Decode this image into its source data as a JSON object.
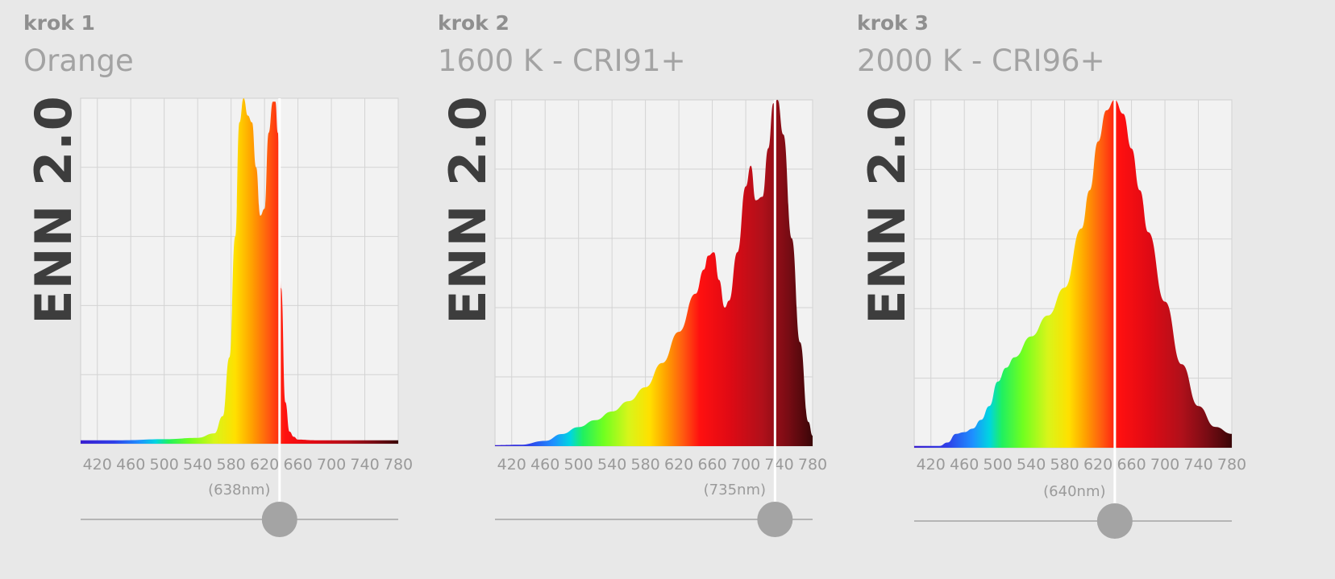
{
  "panels": [
    {
      "step": "krok 1",
      "heading": "Orange",
      "brand": "ENN 2.0",
      "peak_label": "(638nm)",
      "peak_nm": 638
    },
    {
      "step": "krok 2",
      "heading": "1600 K - CRI91+",
      "brand": "ENN 2.0",
      "peak_label": "(735nm)",
      "peak_nm": 735
    },
    {
      "step": "krok 3",
      "heading": "2000 K - CRI96+",
      "brand": "ENN 2.0",
      "peak_label": "(640nm)",
      "peak_nm": 640
    }
  ],
  "chart_data": [
    {
      "type": "area",
      "title": "Orange",
      "xlabel": "",
      "ylabel": "",
      "xlim": [
        400,
        780
      ],
      "ylim": [
        0,
        1
      ],
      "grid": true,
      "x_ticks": [
        420,
        460,
        500,
        540,
        580,
        620,
        660,
        700,
        740,
        780
      ],
      "x_tick_labels": [
        "420",
        "460",
        "500",
        "540",
        "580",
        "620",
        "660",
        "700",
        "740",
        "780"
      ],
      "marker_nm": 638,
      "x": [
        400,
        450,
        500,
        540,
        560,
        570,
        578,
        585,
        590,
        595,
        600,
        605,
        610,
        615,
        620,
        625,
        630,
        633,
        636,
        640,
        645,
        650,
        655,
        660,
        680,
        700,
        740,
        780
      ],
      "y": [
        0.01,
        0.01,
        0.013,
        0.017,
        0.03,
        0.08,
        0.25,
        0.6,
        0.93,
        1.0,
        0.95,
        0.93,
        0.8,
        0.66,
        0.68,
        0.9,
        0.99,
        0.99,
        0.9,
        0.45,
        0.12,
        0.035,
        0.02,
        0.012,
        0.01,
        0.01,
        0.01,
        0.01
      ]
    },
    {
      "type": "area",
      "title": "1600 K - CRI91+",
      "xlabel": "",
      "ylabel": "",
      "xlim": [
        400,
        780
      ],
      "ylim": [
        0,
        1
      ],
      "grid": true,
      "x_ticks": [
        420,
        460,
        500,
        540,
        580,
        620,
        660,
        700,
        740,
        780
      ],
      "x_tick_labels": [
        "420",
        "460",
        "500",
        "540",
        "580",
        "620",
        "660",
        "700",
        "740",
        "780"
      ],
      "marker_nm": 735,
      "x": [
        400,
        430,
        460,
        480,
        500,
        520,
        540,
        560,
        580,
        600,
        620,
        640,
        650,
        655,
        662,
        668,
        675,
        680,
        690,
        700,
        706,
        712,
        720,
        727,
        733,
        738,
        745,
        755,
        765,
        775,
        780
      ],
      "y": [
        0.003,
        0.004,
        0.015,
        0.035,
        0.055,
        0.075,
        0.1,
        0.13,
        0.17,
        0.24,
        0.33,
        0.44,
        0.51,
        0.55,
        0.56,
        0.48,
        0.4,
        0.42,
        0.56,
        0.75,
        0.81,
        0.71,
        0.72,
        0.86,
        0.99,
        1.0,
        0.9,
        0.6,
        0.3,
        0.07,
        0.03
      ]
    },
    {
      "type": "area",
      "title": "2000 K - CRI96+",
      "xlabel": "",
      "ylabel": "",
      "xlim": [
        400,
        780
      ],
      "ylim": [
        0,
        1
      ],
      "grid": true,
      "x_ticks": [
        420,
        460,
        500,
        540,
        580,
        620,
        660,
        700,
        740,
        780
      ],
      "x_tick_labels": [
        "420",
        "460",
        "500",
        "540",
        "580",
        "620",
        "660",
        "700",
        "740",
        "780"
      ],
      "marker_nm": 640,
      "x": [
        400,
        430,
        440,
        450,
        460,
        470,
        480,
        490,
        500,
        510,
        520,
        540,
        560,
        580,
        600,
        610,
        620,
        630,
        640,
        650,
        660,
        670,
        680,
        700,
        720,
        740,
        760,
        780
      ],
      "y": [
        0.005,
        0.005,
        0.015,
        0.04,
        0.045,
        0.055,
        0.08,
        0.12,
        0.19,
        0.23,
        0.26,
        0.32,
        0.38,
        0.46,
        0.63,
        0.74,
        0.88,
        0.97,
        1.0,
        0.96,
        0.86,
        0.74,
        0.62,
        0.42,
        0.24,
        0.12,
        0.06,
        0.04
      ]
    }
  ]
}
